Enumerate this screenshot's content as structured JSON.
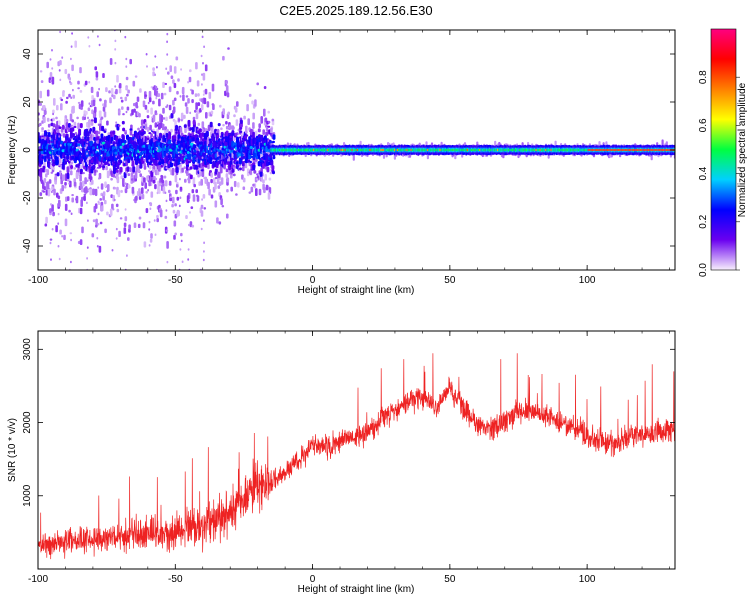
{
  "title": "C2E5.2025.189.12.56.E30",
  "chart_data": [
    {
      "type": "heatmap",
      "xlabel": "Height of straight line (km)",
      "ylabel": "Frequency (Hz)",
      "xlim": [
        -100,
        132
      ],
      "ylim": [
        -50,
        50
      ],
      "xticks": [
        "-100",
        "-50",
        "0",
        "50",
        "100"
      ],
      "yticks": [
        "-40",
        "-20",
        "0",
        "20",
        "40"
      ],
      "grid": false,
      "colorbar": {
        "label": "Normalized spectral amplitude",
        "range": [
          0,
          1
        ],
        "ticks": [
          "0.0",
          "0.2",
          "0.4",
          "0.6",
          "0.8"
        ],
        "colormap": [
          "#f8f0fc",
          "#6a00f0",
          "#0000ff",
          "#00d0ff",
          "#00ff40",
          "#ffff00",
          "#ff8000",
          "#ff0000",
          "#ff0080"
        ]
      },
      "description_of_content": "Broad noisy spectrum centred near 0 Hz for heights below about -15 km; narrow strong line at 0 Hz above"
    },
    {
      "type": "line",
      "xlabel": "Height of straight line (km)",
      "ylabel": "SNR (10 * v/v)",
      "xlim": [
        -100,
        132
      ],
      "ylim": [
        0,
        3250
      ],
      "xticks": [
        "-100",
        "-50",
        "0",
        "50",
        "100"
      ],
      "yticks": [
        "1000",
        "2000",
        "3000"
      ],
      "grid": false,
      "series": [
        {
          "color": "#ee2222",
          "x": [
            -100,
            -90,
            -80,
            -70,
            -60,
            -50,
            -40,
            -35,
            -30,
            -25,
            -20,
            -15,
            -10,
            -5,
            0,
            5,
            10,
            15,
            20,
            25,
            30,
            35,
            40,
            45,
            50,
            55,
            60,
            65,
            70,
            75,
            80,
            85,
            90,
            95,
            100,
            105,
            110,
            115,
            120,
            125,
            130
          ],
          "y": [
            330,
            370,
            420,
            450,
            480,
            500,
            580,
            680,
            800,
            1000,
            1150,
            1200,
            1300,
            1500,
            1700,
            1650,
            1750,
            1800,
            1850,
            2050,
            2150,
            2300,
            2350,
            2200,
            2500,
            2200,
            2000,
            1900,
            2000,
            2150,
            2150,
            2100,
            2000,
            1950,
            1800,
            1750,
            1700,
            1800,
            1850,
            1850,
            1900
          ],
          "noise_amplitude": "large (about ±300 below -15 km, ±200 above)"
        }
      ]
    }
  ]
}
